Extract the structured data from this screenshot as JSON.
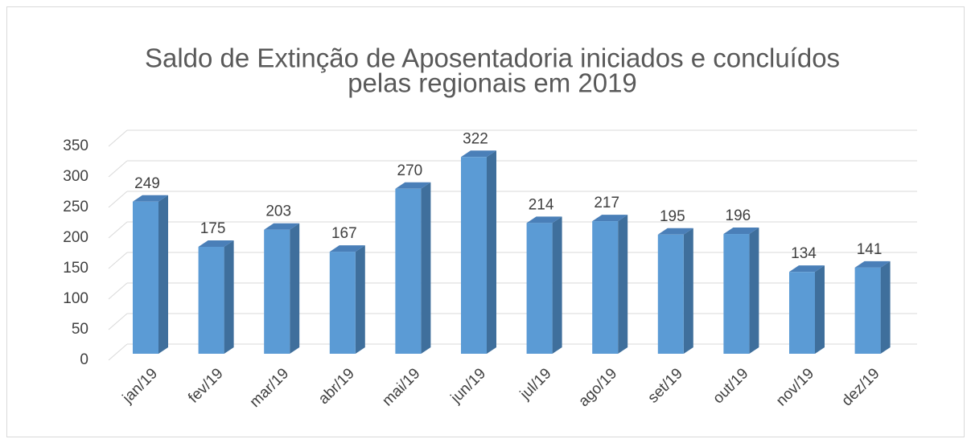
{
  "chart_data": {
    "type": "bar3d",
    "title": [
      "Saldo de Extinção de Aposentadoria iniciados e concluídos",
      "pelas regionais em 2019"
    ],
    "categories": [
      "jan/19",
      "fev/19",
      "mar/19",
      "abr/19",
      "mai/19",
      "jun/19",
      "jul/19",
      "ago/19",
      "set/19",
      "out/19",
      "nov/19",
      "dez/19"
    ],
    "values": [
      249,
      175,
      203,
      167,
      270,
      322,
      214,
      217,
      195,
      196,
      134,
      141
    ],
    "color": "#5b9bd5",
    "ylim": [
      0,
      350
    ],
    "yticks": [
      0,
      50,
      100,
      150,
      200,
      250,
      300,
      350
    ],
    "grid": true
  }
}
